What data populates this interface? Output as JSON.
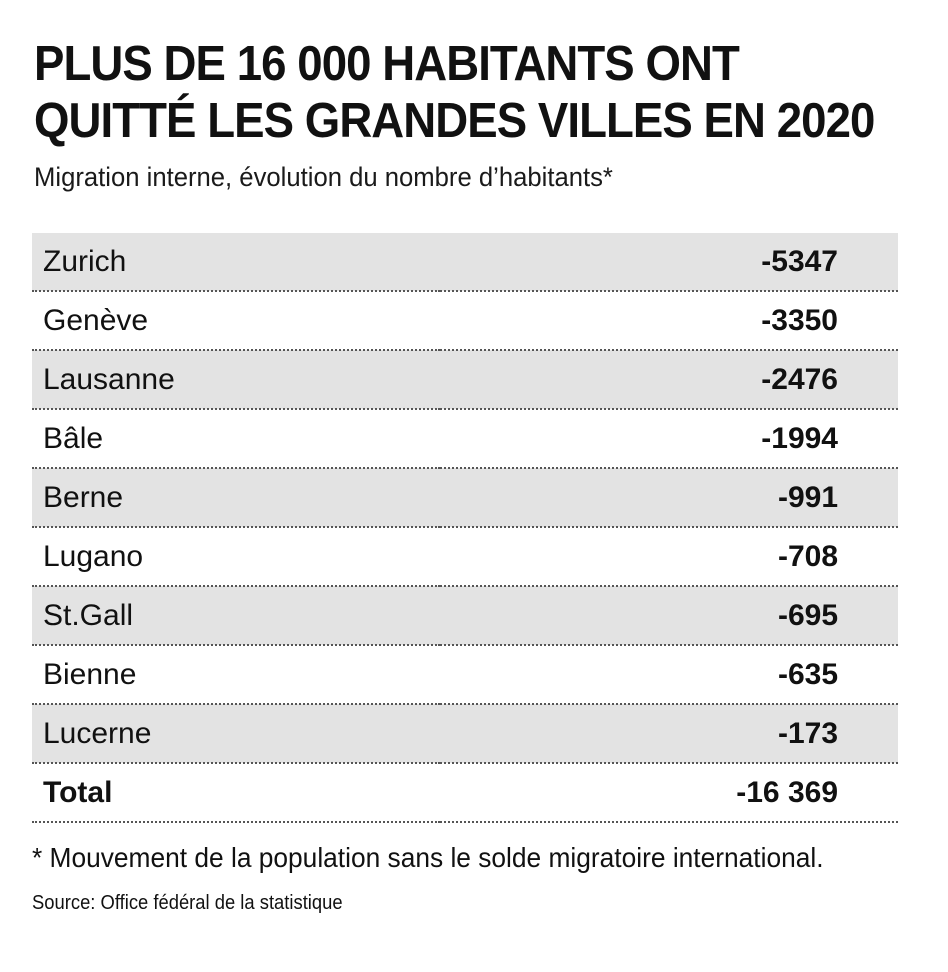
{
  "chart_data": {
    "type": "table",
    "title": "PLUS DE 16 000 HABITANTS ONT QUITTÉ LES GRANDES VILLES EN 2020",
    "subtitle": "Migration interne, évolution du nombre d’habitants*",
    "rows": [
      {
        "city": "Zurich",
        "value": "-5347"
      },
      {
        "city": "Genève",
        "value": "-3350"
      },
      {
        "city": "Lausanne",
        "value": "-2476"
      },
      {
        "city": "Bâle",
        "value": "-1994"
      },
      {
        "city": "Berne",
        "value": "-991"
      },
      {
        "city": "Lugano",
        "value": "-708"
      },
      {
        "city": "St.Gall",
        "value": "-695"
      },
      {
        "city": "Bienne",
        "value": "-635"
      },
      {
        "city": "Lucerne",
        "value": "-173"
      }
    ],
    "total": {
      "label": "Total",
      "value": "-16 369"
    },
    "footnote": "* Mouvement de la population sans le solde migratoire international.",
    "source": "Source: Office fédéral de la statistique"
  },
  "colors": {
    "shaded_row": "#e3e3e3",
    "text": "#111111"
  }
}
